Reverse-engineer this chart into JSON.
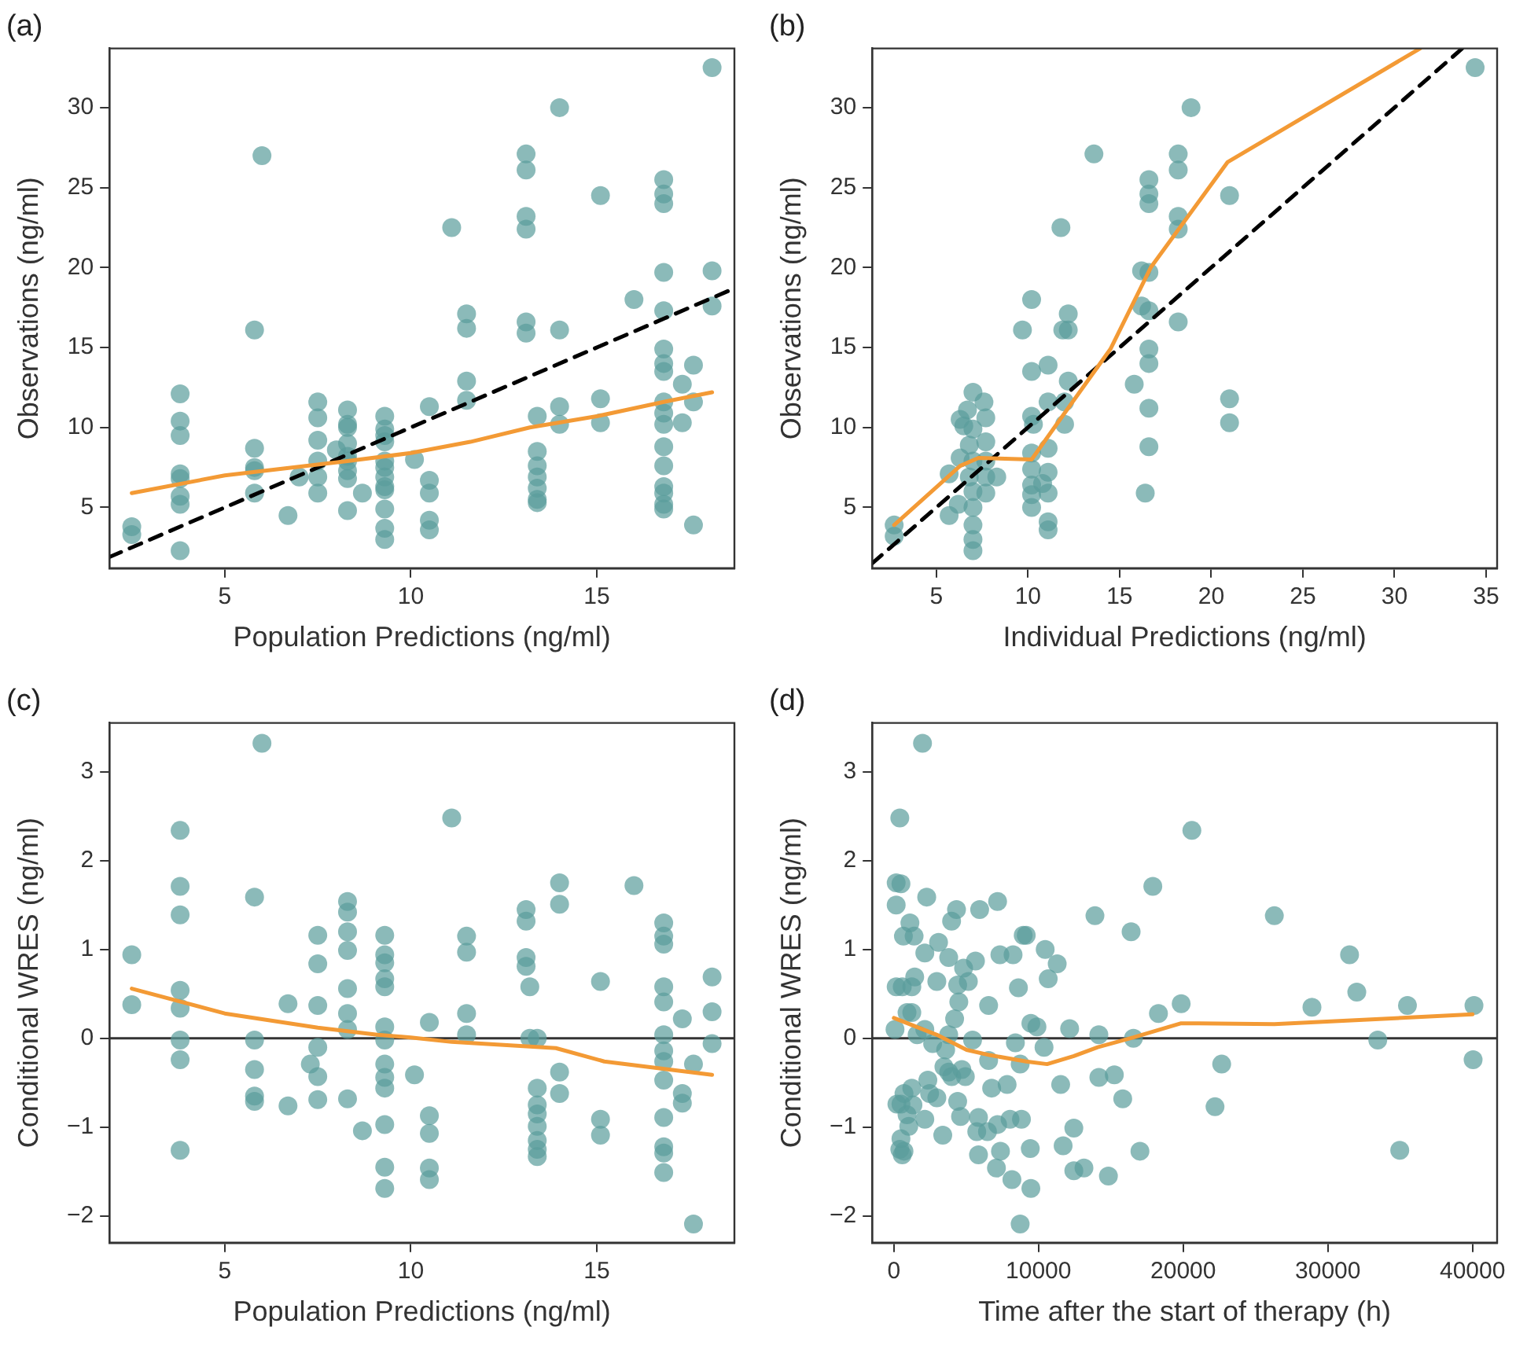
{
  "chart_data": [
    {
      "type": "scatter",
      "title": "(a)",
      "xlabel": "Population Predictions (ng/ml)",
      "ylabel": "Observations (ng/ml)",
      "xlim": [
        1.9,
        18.7
      ],
      "ylim": [
        1.2,
        33.7
      ],
      "xticks": [
        5,
        10,
        15
      ],
      "yticks": [
        5,
        10,
        15,
        20,
        25,
        30
      ],
      "series": [
        {
          "type": "scatter",
          "marker": "circle",
          "color": "#5a9c9b",
          "x": [
            2.5,
            2.5,
            3.8,
            3.8,
            3.8,
            3.8,
            3.8,
            3.8,
            3.8,
            3.8,
            5.8,
            5.8,
            5.8,
            5.8,
            5.8,
            6.0,
            6.7,
            7.5,
            7.5,
            7.5,
            7.5,
            7.5,
            7.5,
            7.0,
            8.3,
            8.3,
            8.3,
            8.3,
            8.3,
            8.3,
            8.3,
            8.3,
            8.3,
            8.0,
            8.7,
            9.3,
            9.3,
            9.3,
            9.3,
            9.3,
            9.3,
            9.3,
            9.3,
            9.3,
            9.3,
            9.3,
            9.3,
            10.1,
            10.5,
            10.5,
            10.5,
            10.5,
            10.5,
            11.1,
            11.5,
            11.5,
            11.5,
            11.5,
            13.1,
            13.1,
            13.1,
            13.1,
            13.1,
            13.1,
            13.4,
            13.4,
            13.4,
            13.4,
            13.4,
            13.4,
            13.4,
            14.0,
            14.0,
            14.0,
            14.0,
            15.1,
            15.1,
            15.1,
            16.0,
            16.8,
            16.8,
            16.8,
            16.8,
            16.8,
            16.8,
            16.8,
            16.8,
            16.8,
            16.8,
            16.8,
            16.8,
            16.8,
            16.8,
            16.8,
            16.8,
            16.8,
            17.3,
            17.3,
            17.6,
            17.6,
            17.6,
            18.1,
            18.1,
            18.1
          ],
          "values": [
            3.8,
            3.3,
            12.1,
            10.4,
            9.5,
            7.1,
            6.8,
            5.7,
            5.2,
            2.3,
            16.1,
            8.7,
            7.5,
            7.3,
            5.9,
            27.0,
            4.5,
            11.6,
            10.6,
            9.2,
            7.9,
            6.9,
            5.9,
            6.9,
            11.1,
            10.2,
            10.0,
            9.0,
            8.2,
            7.9,
            7.3,
            6.8,
            4.8,
            8.6,
            5.9,
            10.7,
            9.9,
            9.5,
            9.1,
            7.9,
            7.5,
            6.9,
            6.3,
            6.1,
            4.9,
            3.7,
            3.0,
            8.0,
            11.3,
            6.7,
            5.9,
            4.2,
            3.6,
            22.5,
            17.1,
            16.2,
            12.9,
            11.7,
            27.1,
            26.1,
            23.2,
            22.4,
            16.6,
            15.9,
            10.7,
            8.5,
            7.6,
            6.9,
            6.2,
            5.5,
            5.3,
            30.0,
            16.1,
            11.3,
            10.2,
            24.5,
            11.8,
            10.3,
            18.0,
            25.5,
            24.6,
            24.0,
            19.7,
            17.3,
            14.9,
            14.0,
            13.5,
            11.6,
            10.9,
            10.2,
            8.8,
            7.6,
            6.3,
            5.9,
            5.2,
            4.9,
            12.7,
            10.3,
            13.9,
            11.6,
            3.9,
            32.5,
            19.8,
            17.6
          ]
        },
        {
          "type": "line",
          "marker": "none",
          "line_style": "dashed",
          "color": "#000000",
          "x": [
            1.9,
            18.7
          ],
          "values": [
            1.9,
            18.7
          ]
        },
        {
          "type": "line",
          "marker": "none",
          "line_style": "solid",
          "color": "#f39a35",
          "x": [
            2.5,
            5,
            8.3,
            10,
            11.6,
            13.2,
            15,
            16.8,
            18.1
          ],
          "values": [
            5.9,
            7.0,
            7.9,
            8.4,
            9.1,
            10.0,
            10.7,
            11.6,
            12.2
          ]
        }
      ]
    },
    {
      "type": "scatter",
      "title": "(b)",
      "xlabel": "Individual Predictions (ng/ml)",
      "ylabel": "Observations (ng/ml)",
      "xlim": [
        1.5,
        35.6
      ],
      "ylim": [
        1.2,
        33.7
      ],
      "xticks": [
        5,
        10,
        15,
        20,
        25,
        30,
        35
      ],
      "yticks": [
        5,
        10,
        15,
        20,
        25,
        30
      ],
      "series": [
        {
          "type": "scatter",
          "marker": "circle",
          "color": "#5a9c9b",
          "x": [
            2.7,
            2.7,
            5.7,
            5.7,
            6.3,
            6.5,
            6.7,
            7.0,
            7.0,
            6.8,
            6.3,
            7.0,
            6.8,
            7.0,
            7.0,
            7.0,
            7.0,
            7.0,
            6.2,
            7.6,
            7.7,
            7.7,
            7.7,
            7.7,
            7.7,
            8.3,
            9.7,
            10.2,
            10.2,
            10.2,
            10.3,
            10.2,
            10.2,
            10.2,
            10.2,
            10.2,
            11.1,
            11.1,
            11.1,
            11.1,
            11.1,
            11.1,
            11.1,
            10.8,
            11.8,
            12.2,
            12.2,
            11.9,
            12.2,
            12.0,
            12.0,
            13.6,
            15.8,
            16.2,
            16.2,
            16.6,
            16.6,
            16.6,
            16.6,
            16.6,
            16.6,
            16.6,
            16.6,
            16.6,
            16.4,
            18.2,
            18.2,
            18.2,
            18.2,
            18.2,
            18.9,
            21.0,
            21.0,
            21.0,
            34.4
          ],
          "values": [
            3.9,
            3.2,
            4.5,
            7.1,
            10.5,
            10.1,
            11.1,
            12.2,
            9.9,
            8.9,
            8.1,
            7.9,
            6.9,
            6.0,
            5.0,
            3.9,
            3.0,
            2.3,
            5.2,
            11.6,
            10.6,
            9.1,
            7.9,
            6.9,
            5.9,
            6.9,
            16.1,
            18.0,
            13.5,
            10.7,
            10.2,
            8.4,
            7.4,
            6.4,
            5.8,
            5.0,
            13.9,
            11.6,
            8.7,
            7.2,
            5.9,
            4.1,
            3.6,
            6.5,
            22.5,
            17.1,
            16.1,
            16.1,
            12.9,
            10.2,
            11.6,
            27.1,
            12.7,
            19.8,
            17.6,
            25.5,
            24.6,
            24.0,
            19.7,
            17.3,
            14.9,
            14.0,
            11.2,
            8.8,
            5.9,
            27.1,
            26.1,
            23.2,
            22.4,
            16.6,
            30.0,
            24.5,
            11.8,
            10.3,
            32.5
          ]
        },
        {
          "type": "line",
          "marker": "none",
          "line_style": "dashed",
          "color": "#000000",
          "x": [
            1.5,
            33.7
          ],
          "values": [
            1.5,
            33.7
          ]
        },
        {
          "type": "line",
          "marker": "none",
          "line_style": "solid",
          "color": "#f39a35",
          "x": [
            2.7,
            6.3,
            7.3,
            10.2,
            12.0,
            14.5,
            16.7,
            20.9,
            31.4
          ],
          "values": [
            3.9,
            7.6,
            8.1,
            8.0,
            10.9,
            14.9,
            20.0,
            26.6,
            33.7
          ]
        }
      ]
    },
    {
      "type": "scatter",
      "title": "(c)",
      "xlabel": "Population Predictions (ng/ml)",
      "ylabel": "Conditional WRES (ng/ml)",
      "xlim": [
        1.9,
        18.7
      ],
      "ylim": [
        -2.3,
        3.55
      ],
      "xticks": [
        5,
        10,
        15
      ],
      "yticks": [
        -2,
        -1,
        0,
        1,
        2,
        3
      ],
      "ref_lines": [
        {
          "axis": "y",
          "value": 0,
          "color": "#333333"
        }
      ],
      "series": [
        {
          "type": "scatter",
          "marker": "circle",
          "color": "#5a9c9b",
          "x": [
            2.5,
            2.5,
            3.8,
            3.8,
            3.8,
            3.8,
            3.8,
            3.8,
            3.8,
            3.8,
            5.8,
            5.8,
            5.8,
            5.8,
            5.8,
            6.0,
            6.7,
            6.7,
            7.3,
            7.5,
            7.5,
            7.5,
            7.5,
            7.5,
            7.5,
            8.3,
            8.3,
            8.3,
            8.3,
            8.3,
            8.3,
            8.3,
            8.3,
            8.7,
            9.3,
            9.3,
            9.3,
            9.3,
            9.3,
            9.3,
            9.3,
            9.3,
            9.3,
            9.3,
            9.3,
            9.3,
            9.3,
            10.1,
            10.5,
            10.5,
            10.5,
            10.5,
            10.5,
            11.1,
            11.5,
            11.5,
            11.5,
            11.5,
            13.1,
            13.1,
            13.1,
            13.1,
            13.2,
            13.2,
            13.4,
            13.4,
            13.4,
            13.4,
            13.4,
            13.4,
            13.4,
            13.4,
            14.0,
            14.0,
            14.0,
            14.0,
            15.1,
            15.1,
            15.1,
            16.0,
            16.8,
            16.8,
            16.8,
            16.8,
            16.8,
            16.8,
            16.8,
            16.8,
            16.8,
            16.8,
            16.8,
            16.8,
            16.8,
            17.3,
            17.3,
            17.3,
            17.6,
            17.6,
            18.1,
            18.1,
            18.1
          ],
          "values": [
            0.94,
            0.38,
            2.34,
            1.71,
            1.39,
            0.54,
            0.34,
            -0.02,
            -0.24,
            -1.26,
            1.59,
            -0.02,
            -0.35,
            -0.65,
            -0.71,
            3.32,
            0.39,
            -0.76,
            -0.29,
            1.16,
            0.84,
            0.37,
            -0.1,
            -0.43,
            -0.69,
            1.54,
            1.42,
            1.2,
            0.99,
            0.56,
            0.28,
            0.1,
            -0.68,
            -1.04,
            1.16,
            0.94,
            0.85,
            0.67,
            0.58,
            0.13,
            -0.02,
            -0.29,
            -0.44,
            -0.56,
            -0.97,
            -1.45,
            -1.69,
            -0.41,
            0.18,
            -0.87,
            -1.07,
            -1.46,
            -1.59,
            2.48,
            1.15,
            0.97,
            0.28,
            0.04,
            1.45,
            1.32,
            0.91,
            0.81,
            0.58,
            0,
            0,
            -0.56,
            -0.75,
            -0.85,
            -0.99,
            -1.15,
            -1.25,
            -1.33,
            1.75,
            1.51,
            -0.38,
            -0.62,
            0.64,
            -0.91,
            -1.09,
            1.72,
            1.3,
            1.15,
            1.06,
            0.58,
            0.41,
            0.04,
            -0.14,
            -0.26,
            -0.47,
            -0.89,
            -1.22,
            -1.29,
            -1.51,
            0.22,
            -0.62,
            -0.73,
            -0.29,
            -2.09,
            0.69,
            0.3,
            -0.06
          ]
        },
        {
          "type": "line",
          "marker": "none",
          "line_style": "solid",
          "color": "#f39a35",
          "x": [
            2.5,
            5,
            7.5,
            9.1,
            10,
            11.1,
            13.9,
            15.2,
            18.1
          ],
          "values": [
            0.56,
            0.28,
            0.12,
            0.04,
            0.01,
            -0.04,
            -0.11,
            -0.26,
            -0.41
          ]
        }
      ]
    },
    {
      "type": "scatter",
      "title": "(d)",
      "xlabel": "Time after the start of therapy (h)",
      "ylabel": "Conditional WRES (ng/ml)",
      "xlim": [
        -1500,
        41700
      ],
      "ylim": [
        -2.3,
        3.55
      ],
      "xticks": [
        0,
        10000,
        20000,
        30000,
        40000
      ],
      "yticks": [
        -2,
        -1,
        0,
        1,
        2,
        3
      ],
      "ref_lines": [
        {
          "axis": "y",
          "value": 0,
          "color": "#333333"
        }
      ],
      "series": [
        {
          "type": "scatter",
          "marker": "circle",
          "color": "#5a9c9b",
          "x": [
            1980,
            410,
            20600,
            160,
            490,
            160,
            2270,
            17900,
            7170,
            5930,
            4330,
            3990,
            13900,
            26300,
            1110,
            1400,
            660,
            16400,
            8940,
            9150,
            3090,
            2140,
            3790,
            7330,
            8240,
            10460,
            11290,
            5640,
            4820,
            31500,
            1440,
            1240,
            2970,
            160,
            580,
            4410,
            5150,
            10670,
            8610,
            32000,
            6550,
            4490,
            910,
            1240,
            19860,
            18290,
            28900,
            35500,
            40100,
            4200,
            2140,
            80,
            1610,
            9470,
            9890,
            12150,
            14170,
            16560,
            33450,
            2680,
            3790,
            5440,
            8400,
            10380,
            3580,
            6550,
            8730,
            22660,
            40040,
            3460,
            3790,
            4700,
            4940,
            4000,
            2350,
            14170,
            15240,
            11530,
            1240,
            700,
            490,
            2470,
            2970,
            6760,
            7830,
            4410,
            15820,
            22200,
            210,
            1320,
            910,
            4610,
            5850,
            2140,
            8030,
            8820,
            7170,
            1030,
            12440,
            5730,
            6470,
            3380,
            490,
            11700,
            9430,
            410,
            700,
            7370,
            17010,
            34970,
            580,
            5850,
            13140,
            12440,
            7090,
            14830,
            8160,
            9470,
            8730
          ],
          "values": [
            3.32,
            2.48,
            2.34,
            1.75,
            1.74,
            1.5,
            1.59,
            1.71,
            1.54,
            1.45,
            1.45,
            1.32,
            1.38,
            1.38,
            1.3,
            1.15,
            1.15,
            1.2,
            1.16,
            1.16,
            1.08,
            0.96,
            0.91,
            0.94,
            0.94,
            1.0,
            0.84,
            0.87,
            0.79,
            0.94,
            0.69,
            0.58,
            0.64,
            0.58,
            0.58,
            0.6,
            0.64,
            0.67,
            0.57,
            0.52,
            0.37,
            0.41,
            0.29,
            0.29,
            0.39,
            0.28,
            0.35,
            0.37,
            0.37,
            0.22,
            0.1,
            0.1,
            0.04,
            0.17,
            0.13,
            0.11,
            0.04,
            0,
            -0.02,
            -0.06,
            0.04,
            -0.02,
            -0.05,
            -0.1,
            -0.13,
            -0.25,
            -0.29,
            -0.29,
            -0.24,
            -0.32,
            -0.38,
            -0.35,
            -0.43,
            -0.43,
            -0.47,
            -0.44,
            -0.41,
            -0.52,
            -0.56,
            -0.62,
            -0.74,
            -0.62,
            -0.67,
            -0.56,
            -0.52,
            -0.71,
            -0.68,
            -0.77,
            -0.74,
            -0.75,
            -0.86,
            -0.88,
            -0.89,
            -0.91,
            -0.91,
            -0.91,
            -0.97,
            -0.99,
            -1.01,
            -1.05,
            -1.05,
            -1.09,
            -1.13,
            -1.21,
            -1.24,
            -1.25,
            -1.27,
            -1.27,
            -1.27,
            -1.26,
            -1.31,
            -1.31,
            -1.46,
            -1.49,
            -1.46,
            -1.55,
            -1.59,
            -1.69,
            -2.09
          ]
        },
        {
          "type": "line",
          "marker": "none",
          "line_style": "solid",
          "color": "#f39a35",
          "x": [
            0,
            2970,
            5030,
            6670,
            9150,
            10590,
            12440,
            14090,
            16560,
            19860,
            26300,
            40000
          ],
          "values": [
            0.23,
            0.04,
            -0.13,
            -0.19,
            -0.26,
            -0.29,
            -0.2,
            -0.1,
            0.01,
            0.17,
            0.16,
            0.27
          ]
        }
      ]
    }
  ]
}
